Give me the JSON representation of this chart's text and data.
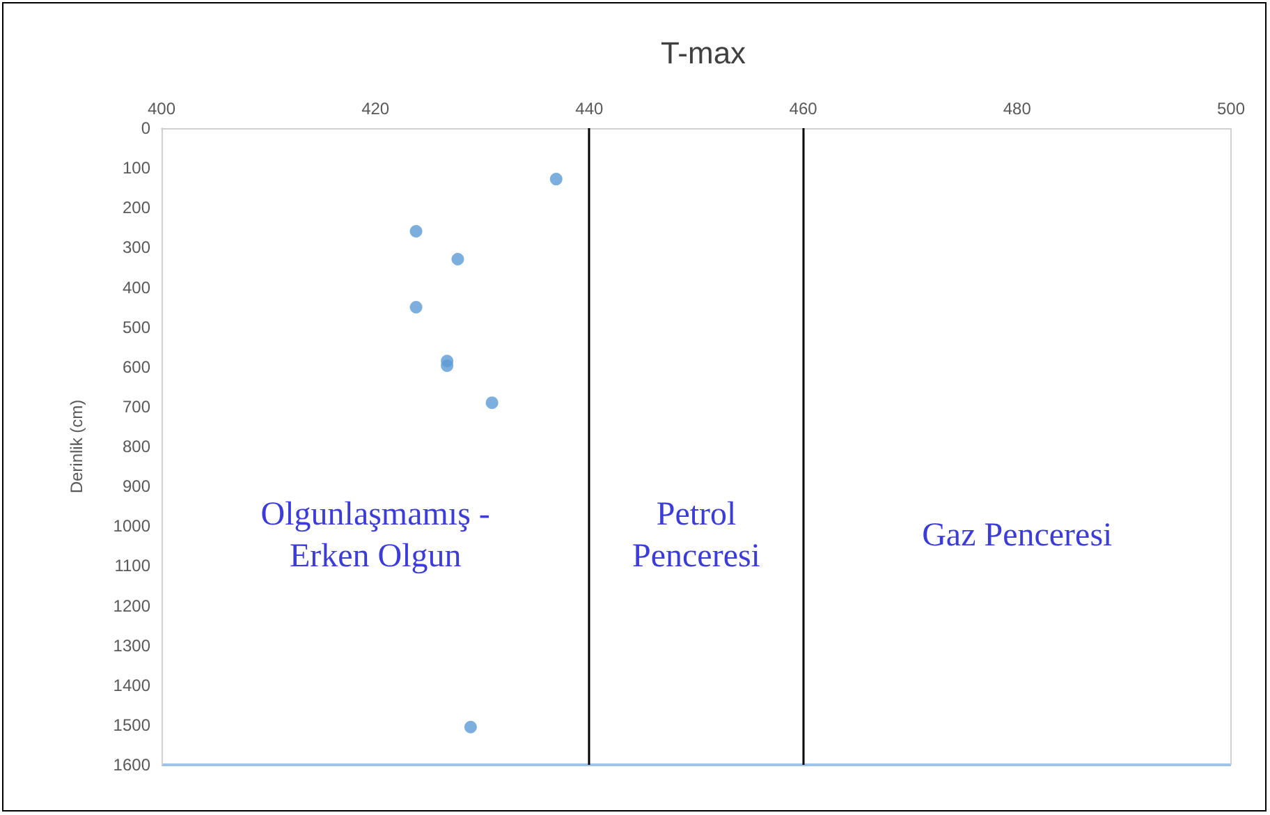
{
  "chart_data": {
    "type": "scatter",
    "title": "T-max",
    "ylabel": "Derinlik (cm)",
    "x": [
      436.9,
      423.8,
      427.7,
      423.8,
      426.7,
      426.7,
      430.9,
      428.9
    ],
    "values": [
      128,
      259,
      329,
      450,
      585,
      597,
      690,
      1505
    ],
    "color": "#5b9bd5",
    "marker": "circle",
    "xlim": [
      400,
      500
    ],
    "xticks": [
      400,
      420,
      440,
      460,
      480,
      500
    ],
    "ylim": [
      1600,
      0
    ],
    "yticks": [
      0,
      100,
      200,
      300,
      400,
      500,
      600,
      700,
      800,
      900,
      1000,
      1100,
      1200,
      1300,
      1400,
      1500,
      1600
    ],
    "ref_lines": [
      {
        "axis": "x",
        "value": 440,
        "color": "#000000"
      },
      {
        "axis": "x",
        "value": 460,
        "color": "#000000"
      }
    ],
    "annotations": [
      "Olgunlaşmamış -\nErken Olgun",
      "Petrol\nPenceresi",
      "Gaz Penceresi"
    ],
    "grid": false
  }
}
